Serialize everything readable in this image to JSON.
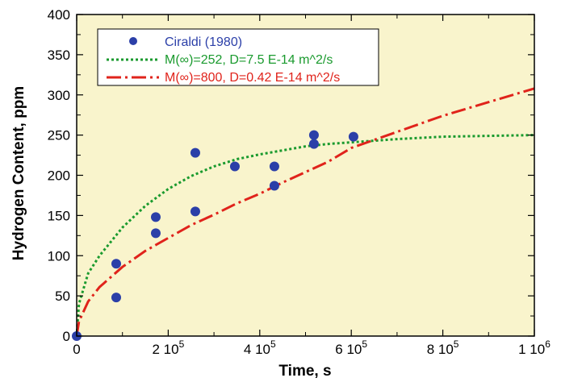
{
  "chart_data": {
    "type": "scatter",
    "xlabel": "Time, s",
    "ylabel": "Hydrogen Content, ppm",
    "xlim": [
      0,
      1000000
    ],
    "ylim": [
      0,
      400
    ],
    "grid": false,
    "legend_position": "top-left",
    "colors": {
      "plot_background": "#f9f4cc",
      "points": "#2b3fa8",
      "series_green": "#1a9a2e",
      "series_red": "#e0231b"
    },
    "x_ticks": [
      {
        "value": 0,
        "label": "0",
        "exp": ""
      },
      {
        "value": 200000,
        "label": "2 10",
        "exp": "5"
      },
      {
        "value": 400000,
        "label": "4 10",
        "exp": "5"
      },
      {
        "value": 600000,
        "label": "6 10",
        "exp": "5"
      },
      {
        "value": 800000,
        "label": "8 10",
        "exp": "5"
      },
      {
        "value": 1000000,
        "label": "1 10",
        "exp": "6"
      }
    ],
    "y_ticks": [
      0,
      50,
      100,
      150,
      200,
      250,
      300,
      350,
      400
    ],
    "series": [
      {
        "name": "Ciraldi (1980)",
        "kind": "points",
        "x": [
          0,
          86400,
          86400,
          172800,
          172800,
          259200,
          259200,
          345600,
          432000,
          432000,
          518400,
          518400,
          604800
        ],
        "y": [
          0,
          48,
          90,
          128,
          148,
          155,
          228,
          211,
          211,
          187,
          239,
          250,
          248
        ]
      },
      {
        "name": "M(∞)=252, D=7.5 E-14 m^2/s",
        "kind": "line",
        "style": "dotted",
        "x": [
          0,
          5000,
          25000,
          50000,
          100000,
          150000,
          200000,
          250000,
          300000,
          350000,
          400000,
          450000,
          500000,
          550000,
          600000,
          700000,
          800000,
          900000,
          1000000
        ],
        "y": [
          0,
          40,
          78,
          100,
          135,
          162,
          183,
          199,
          211,
          220,
          226,
          231,
          236,
          239,
          241,
          245,
          248,
          249,
          250
        ]
      },
      {
        "name": "M(∞)=800, D=0.42 E-14 m^2/s",
        "kind": "line",
        "style": "dash-dot",
        "x": [
          0,
          5000,
          25000,
          50000,
          100000,
          150000,
          200000,
          250000,
          300000,
          350000,
          400000,
          450000,
          500000,
          550000,
          600000,
          700000,
          800000,
          900000,
          1000000
        ],
        "y": [
          0,
          18,
          43,
          61,
          86,
          106,
          122,
          138,
          151,
          165,
          177,
          191,
          204,
          217,
          234,
          254,
          274,
          291,
          308
        ]
      }
    ]
  }
}
